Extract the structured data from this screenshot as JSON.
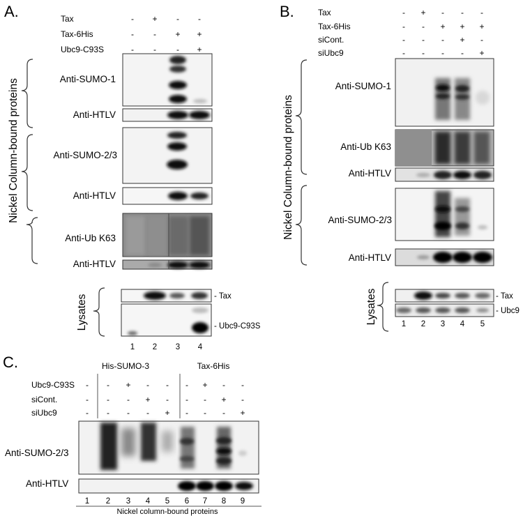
{
  "figure": {
    "panels": [
      {
        "id": "A",
        "label": "A.",
        "conditions": [
          {
            "name": "Tax",
            "values": [
              "-",
              "+",
              "-",
              "-"
            ]
          },
          {
            "name": "Tax-6His",
            "values": [
              "-",
              "-",
              "+",
              "+"
            ]
          },
          {
            "name": "Ubc9-C93S",
            "values": [
              "-",
              "-",
              "-",
              "+"
            ]
          }
        ],
        "group_label": "Nickel Column-bound proteins",
        "blots": [
          {
            "label": "Anti-SUMO-1"
          },
          {
            "label": "Anti-HTLV"
          },
          {
            "label": "Anti-SUMO-2/3"
          },
          {
            "label": "Anti-HTLV"
          },
          {
            "label": "Anti-Ub K63"
          },
          {
            "label": "Anti-HTLV"
          }
        ],
        "lysates_label": "Lysates",
        "lysate_blots": [
          {
            "band_label": "- Tax"
          },
          {
            "band_label": "- Ubc9-C93S"
          }
        ],
        "lanes": [
          "1",
          "2",
          "3",
          "4"
        ]
      },
      {
        "id": "B",
        "label": "B.",
        "conditions": [
          {
            "name": "Tax",
            "values": [
              "-",
              "+",
              "-",
              "-",
              "-"
            ]
          },
          {
            "name": "Tax-6His",
            "values": [
              "-",
              "-",
              "+",
              "+",
              "+"
            ]
          },
          {
            "name": "siCont.",
            "values": [
              "-",
              "-",
              "-",
              "+",
              "-"
            ]
          },
          {
            "name": "siUbc9",
            "values": [
              "-",
              "-",
              "-",
              "-",
              "+"
            ]
          }
        ],
        "group_label": "Nickel Column-bound proteins",
        "blots": [
          {
            "label": "Anti-SUMO-1"
          },
          {
            "label": "Anti-Ub K63"
          },
          {
            "label": "Anti-HTLV"
          },
          {
            "label": "Anti-SUMO-2/3"
          },
          {
            "label": "Anti-HTLV"
          }
        ],
        "lysates_label": "Lysates",
        "lysate_blots": [
          {
            "band_label": "- Tax"
          },
          {
            "band_label": "- Ubc9"
          }
        ],
        "lanes": [
          "1",
          "2",
          "3",
          "4",
          "5"
        ]
      },
      {
        "id": "C",
        "label": "C.",
        "groups": [
          "His-SUMO-3",
          "Tax-6His"
        ],
        "conditions": [
          {
            "name": "Ubc9-C93S",
            "values": [
              "-",
              "-",
              "+",
              "-",
              "-",
              "-",
              "+",
              "-",
              "-"
            ]
          },
          {
            "name": "siCont.",
            "values": [
              "-",
              "-",
              "-",
              "+",
              "-",
              "-",
              "-",
              "+",
              "-"
            ]
          },
          {
            "name": "siUbc9",
            "values": [
              "-",
              "-",
              "-",
              "-",
              "+",
              "-",
              "-",
              "-",
              "+"
            ]
          }
        ],
        "blots": [
          {
            "label": "Anti-SUMO-2/3"
          },
          {
            "label": "Anti-HTLV"
          }
        ],
        "lanes": [
          "1",
          "2",
          "3",
          "4",
          "5",
          "6",
          "7",
          "8",
          "9"
        ],
        "footer": "Nickel column-bound proteins"
      }
    ]
  }
}
